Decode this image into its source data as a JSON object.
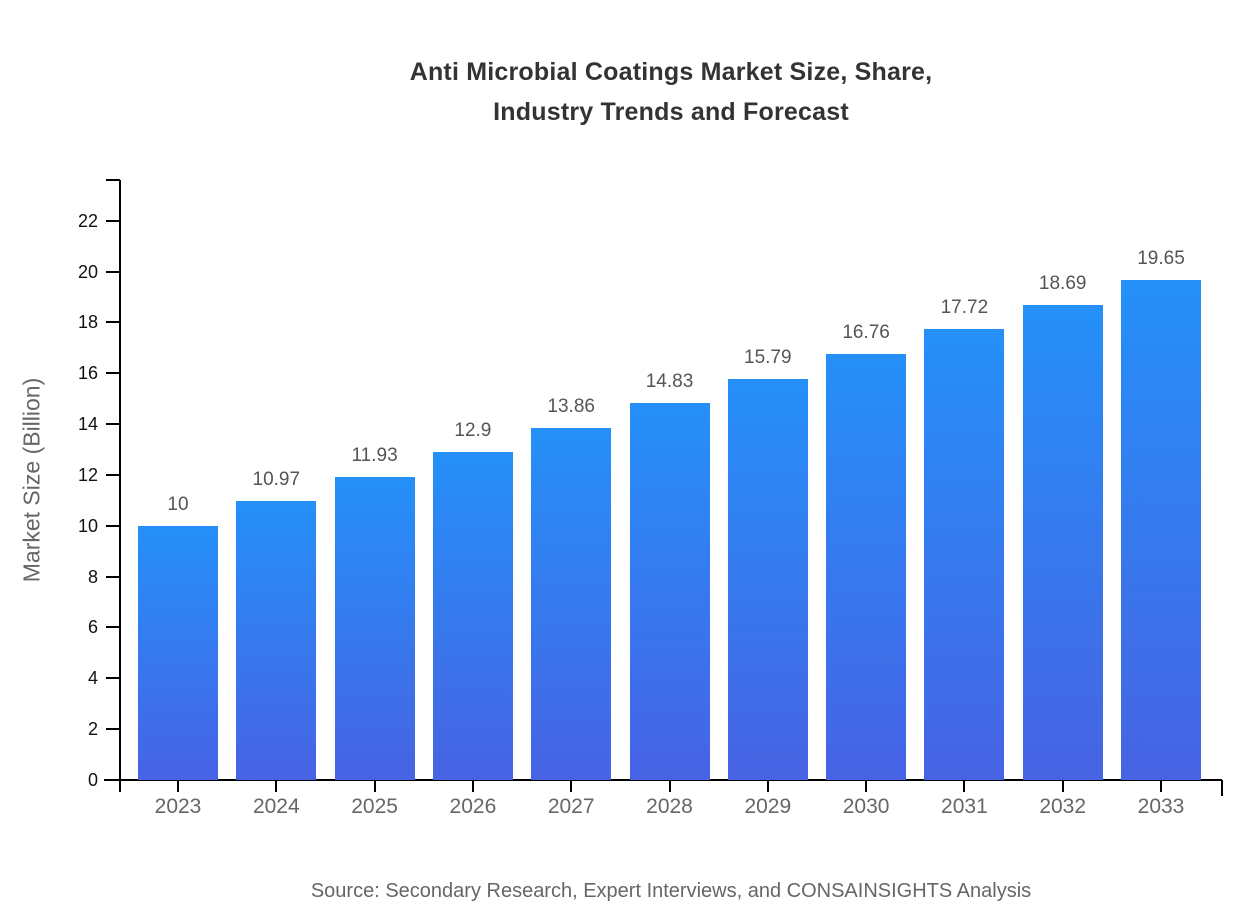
{
  "page": {
    "background": "#ffffff"
  },
  "chart_data": {
    "type": "bar",
    "title": "Anti Microbial Coatings Market Size, Share,\nIndustry Trends and Forecast",
    "xlabel": "",
    "ylabel": "Market Size (Billion)",
    "categories": [
      "2023",
      "2024",
      "2025",
      "2026",
      "2027",
      "2028",
      "2029",
      "2030",
      "2031",
      "2032",
      "2033"
    ],
    "values": [
      10,
      10.97,
      11.93,
      12.9,
      13.86,
      14.83,
      15.79,
      16.76,
      17.72,
      18.69,
      19.65
    ],
    "y_ticks": [
      0,
      2,
      4,
      6,
      8,
      10,
      12,
      14,
      16,
      18,
      20,
      22
    ],
    "ylim": [
      0,
      23.6
    ],
    "grid": false,
    "legend_position": "none",
    "colors": {
      "bar_gradient_top": "#2590f8",
      "bar_gradient_bottom": "#4763e3",
      "axis": "#000000",
      "y_tick_label": "#111111",
      "category_label": "#666666",
      "value_label": "#555555",
      "title": "#333333",
      "y_axis_title": "#666666",
      "source_note": "#666666"
    }
  },
  "source_note": "Source: Secondary Research, Expert Interviews, and CONSAINSIGHTS Analysis"
}
